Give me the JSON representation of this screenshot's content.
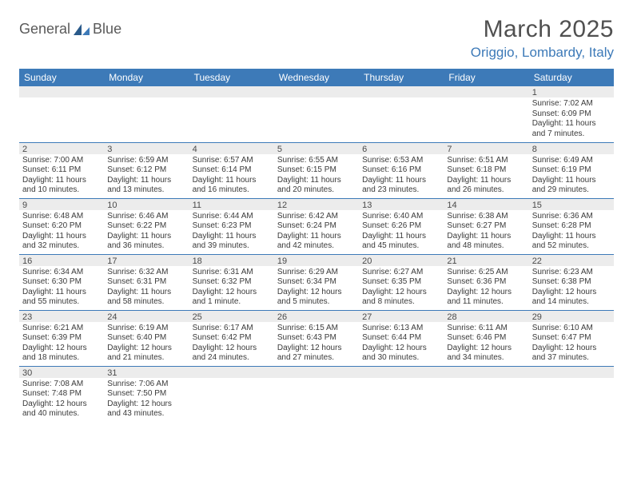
{
  "logo": {
    "text1": "General",
    "text2": "Blue"
  },
  "title": "March 2025",
  "location": "Origgio, Lombardy, Italy",
  "colors": {
    "header_bg": "#3d7ab8",
    "header_text": "#ffffff",
    "daynum_bg": "#ececec",
    "border": "#3d7ab8",
    "title_text": "#505050",
    "location_text": "#3d7ab8"
  },
  "typography": {
    "title_fontsize": 30,
    "location_fontsize": 17,
    "header_fontsize": 12,
    "daynum_fontsize": 11,
    "body_fontsize": 10
  },
  "weekdays": [
    "Sunday",
    "Monday",
    "Tuesday",
    "Wednesday",
    "Thursday",
    "Friday",
    "Saturday"
  ],
  "weeks": [
    [
      null,
      null,
      null,
      null,
      null,
      null,
      {
        "d": "1",
        "sr": "7:02 AM",
        "ss": "6:09 PM",
        "dl": "11 hours and 7 minutes."
      }
    ],
    [
      {
        "d": "2",
        "sr": "7:00 AM",
        "ss": "6:11 PM",
        "dl": "11 hours and 10 minutes."
      },
      {
        "d": "3",
        "sr": "6:59 AM",
        "ss": "6:12 PM",
        "dl": "11 hours and 13 minutes."
      },
      {
        "d": "4",
        "sr": "6:57 AM",
        "ss": "6:14 PM",
        "dl": "11 hours and 16 minutes."
      },
      {
        "d": "5",
        "sr": "6:55 AM",
        "ss": "6:15 PM",
        "dl": "11 hours and 20 minutes."
      },
      {
        "d": "6",
        "sr": "6:53 AM",
        "ss": "6:16 PM",
        "dl": "11 hours and 23 minutes."
      },
      {
        "d": "7",
        "sr": "6:51 AM",
        "ss": "6:18 PM",
        "dl": "11 hours and 26 minutes."
      },
      {
        "d": "8",
        "sr": "6:49 AM",
        "ss": "6:19 PM",
        "dl": "11 hours and 29 minutes."
      }
    ],
    [
      {
        "d": "9",
        "sr": "6:48 AM",
        "ss": "6:20 PM",
        "dl": "11 hours and 32 minutes."
      },
      {
        "d": "10",
        "sr": "6:46 AM",
        "ss": "6:22 PM",
        "dl": "11 hours and 36 minutes."
      },
      {
        "d": "11",
        "sr": "6:44 AM",
        "ss": "6:23 PM",
        "dl": "11 hours and 39 minutes."
      },
      {
        "d": "12",
        "sr": "6:42 AM",
        "ss": "6:24 PM",
        "dl": "11 hours and 42 minutes."
      },
      {
        "d": "13",
        "sr": "6:40 AM",
        "ss": "6:26 PM",
        "dl": "11 hours and 45 minutes."
      },
      {
        "d": "14",
        "sr": "6:38 AM",
        "ss": "6:27 PM",
        "dl": "11 hours and 48 minutes."
      },
      {
        "d": "15",
        "sr": "6:36 AM",
        "ss": "6:28 PM",
        "dl": "11 hours and 52 minutes."
      }
    ],
    [
      {
        "d": "16",
        "sr": "6:34 AM",
        "ss": "6:30 PM",
        "dl": "11 hours and 55 minutes."
      },
      {
        "d": "17",
        "sr": "6:32 AM",
        "ss": "6:31 PM",
        "dl": "11 hours and 58 minutes."
      },
      {
        "d": "18",
        "sr": "6:31 AM",
        "ss": "6:32 PM",
        "dl": "12 hours and 1 minute."
      },
      {
        "d": "19",
        "sr": "6:29 AM",
        "ss": "6:34 PM",
        "dl": "12 hours and 5 minutes."
      },
      {
        "d": "20",
        "sr": "6:27 AM",
        "ss": "6:35 PM",
        "dl": "12 hours and 8 minutes."
      },
      {
        "d": "21",
        "sr": "6:25 AM",
        "ss": "6:36 PM",
        "dl": "12 hours and 11 minutes."
      },
      {
        "d": "22",
        "sr": "6:23 AM",
        "ss": "6:38 PM",
        "dl": "12 hours and 14 minutes."
      }
    ],
    [
      {
        "d": "23",
        "sr": "6:21 AM",
        "ss": "6:39 PM",
        "dl": "12 hours and 18 minutes."
      },
      {
        "d": "24",
        "sr": "6:19 AM",
        "ss": "6:40 PM",
        "dl": "12 hours and 21 minutes."
      },
      {
        "d": "25",
        "sr": "6:17 AM",
        "ss": "6:42 PM",
        "dl": "12 hours and 24 minutes."
      },
      {
        "d": "26",
        "sr": "6:15 AM",
        "ss": "6:43 PM",
        "dl": "12 hours and 27 minutes."
      },
      {
        "d": "27",
        "sr": "6:13 AM",
        "ss": "6:44 PM",
        "dl": "12 hours and 30 minutes."
      },
      {
        "d": "28",
        "sr": "6:11 AM",
        "ss": "6:46 PM",
        "dl": "12 hours and 34 minutes."
      },
      {
        "d": "29",
        "sr": "6:10 AM",
        "ss": "6:47 PM",
        "dl": "12 hours and 37 minutes."
      }
    ],
    [
      {
        "d": "30",
        "sr": "7:08 AM",
        "ss": "7:48 PM",
        "dl": "12 hours and 40 minutes."
      },
      {
        "d": "31",
        "sr": "7:06 AM",
        "ss": "7:50 PM",
        "dl": "12 hours and 43 minutes."
      },
      null,
      null,
      null,
      null,
      null
    ]
  ],
  "labels": {
    "sunrise": "Sunrise:",
    "sunset": "Sunset:",
    "daylight": "Daylight:"
  }
}
